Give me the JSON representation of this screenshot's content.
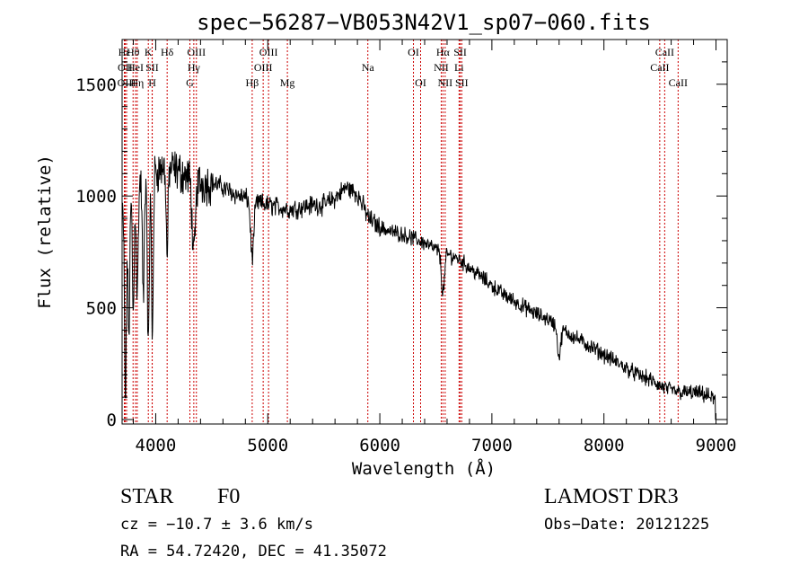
{
  "chart_data": {
    "type": "line",
    "title": "spec−56287−VB053N42V1_sp07−060.fits",
    "xlabel": "Wavelength (Å)",
    "ylabel": "Flux (relative)",
    "xlim": [
      3700,
      9100
    ],
    "ylim": [
      -20,
      1700
    ],
    "x_ticks": [
      4000,
      5000,
      6000,
      7000,
      8000,
      9000
    ],
    "x_tick_labels": [
      "4000",
      "5000",
      "6000",
      "7000",
      "8000",
      "9000"
    ],
    "y_ticks": [
      0,
      500,
      1000,
      1500
    ],
    "y_tick_labels": [
      "0",
      "500",
      "1000",
      "1500"
    ],
    "grid": false,
    "spectrum_anchor_points": {
      "description": "approximate continuum of the plotted spectrum",
      "x": [
        3700,
        3800,
        3900,
        4000,
        4100,
        4200,
        4300,
        4400,
        4500,
        4600,
        4700,
        4800,
        4900,
        5000,
        5100,
        5200,
        5300,
        5400,
        5500,
        5600,
        5700,
        5800,
        5900,
        6000,
        6100,
        6200,
        6300,
        6400,
        6500,
        6600,
        6700,
        6800,
        6900,
        7000,
        7100,
        7200,
        7300,
        7400,
        7500,
        7600,
        7700,
        7800,
        7900,
        8000,
        8100,
        8200,
        8300,
        8400,
        8500,
        8600,
        8700,
        8800,
        8900,
        9000
      ],
      "y": [
        900,
        1020,
        1080,
        1110,
        1130,
        1110,
        1080,
        1060,
        1060,
        1040,
        1010,
        990,
        970,
        960,
        950,
        940,
        950,
        960,
        960,
        990,
        1040,
        1010,
        900,
        860,
        840,
        830,
        810,
        790,
        760,
        740,
        720,
        680,
        640,
        600,
        560,
        530,
        500,
        470,
        450,
        410,
        380,
        350,
        320,
        290,
        260,
        230,
        200,
        180,
        150,
        130,
        120,
        120,
        110,
        90
      ]
    },
    "absorption_features": [
      {
        "x": 3730,
        "depth": 850
      },
      {
        "x": 3760,
        "depth": 600
      },
      {
        "x": 3800,
        "depth": 550
      },
      {
        "x": 3835,
        "depth": 500
      },
      {
        "x": 3889,
        "depth": 550
      },
      {
        "x": 3934,
        "depth": 800
      },
      {
        "x": 3970,
        "depth": 750
      },
      {
        "x": 4102,
        "depth": 400
      },
      {
        "x": 4340,
        "depth": 350
      },
      {
        "x": 4861,
        "depth": 250
      },
      {
        "x": 6563,
        "depth": 180
      },
      {
        "x": 7600,
        "depth": 130
      }
    ],
    "spectral_lines": [
      {
        "label": "Hε",
        "x": 3720,
        "row": 1
      },
      {
        "label": "OII",
        "x": 3727,
        "row": 2
      },
      {
        "label": "OIII",
        "x": 3740,
        "row": 3
      },
      {
        "label": "Hθ",
        "x": 3798,
        "row": 1
      },
      {
        "label": "HeI",
        "x": 3820,
        "row": 2
      },
      {
        "label": "Hη",
        "x": 3835,
        "row": 3
      },
      {
        "label": "K",
        "x": 3934,
        "row": 1
      },
      {
        "label": "SII",
        "x": 3968,
        "row": 2
      },
      {
        "label": "H",
        "x": 3969,
        "row": 3
      },
      {
        "label": "Hδ",
        "x": 4102,
        "row": 1
      },
      {
        "label": "OIII",
        "x": 4363,
        "row": 1
      },
      {
        "label": "Hγ",
        "x": 4340,
        "row": 2
      },
      {
        "label": "G",
        "x": 4305,
        "row": 3
      },
      {
        "label": "Hβ",
        "x": 4861,
        "row": 3
      },
      {
        "label": "OIII",
        "x": 5007,
        "row": 1
      },
      {
        "label": "OIII",
        "x": 4959,
        "row": 2
      },
      {
        "label": "Mg",
        "x": 5175,
        "row": 3
      },
      {
        "label": "Na",
        "x": 5893,
        "row": 2
      },
      {
        "label": "OI",
        "x": 6300,
        "row": 1
      },
      {
        "label": "OI",
        "x": 6364,
        "row": 3
      },
      {
        "label": "Hα",
        "x": 6563,
        "row": 1
      },
      {
        "label": "NII",
        "x": 6548,
        "row": 2
      },
      {
        "label": "NII",
        "x": 6583,
        "row": 3
      },
      {
        "label": "SII",
        "x": 6717,
        "row": 1
      },
      {
        "label": "Li",
        "x": 6707,
        "row": 2
      },
      {
        "label": "SII",
        "x": 6731,
        "row": 3
      },
      {
        "label": "CaII",
        "x": 8542,
        "row": 1
      },
      {
        "label": "CaII",
        "x": 8498,
        "row": 2
      },
      {
        "label": "CaII",
        "x": 8662,
        "row": 3
      }
    ]
  },
  "info": {
    "object_class": "STAR",
    "subclass": "F0",
    "survey": "LAMOST DR3",
    "cz": "cz = −10.7 ± 3.6 km/s",
    "obs_date": "Obs−Date: 20121225",
    "coords": "RA =  54.72420, DEC =  41.35072"
  }
}
